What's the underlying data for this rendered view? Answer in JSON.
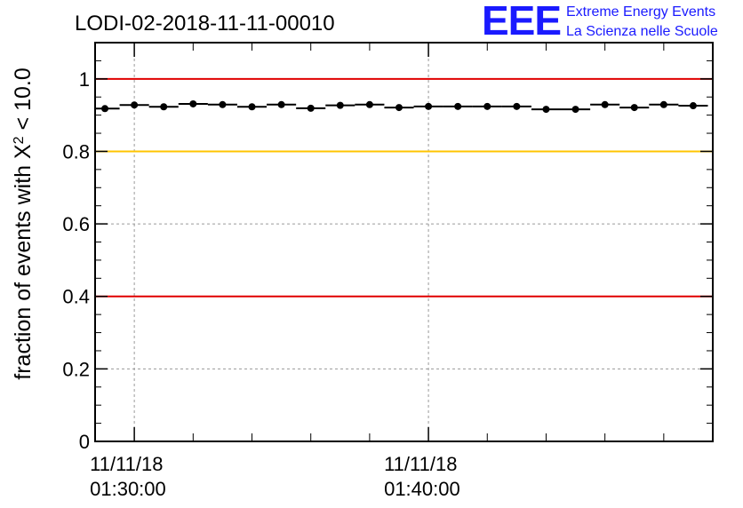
{
  "chart_data": {
    "type": "scatter",
    "title": "LODI-02-2018-11-11-00010",
    "ylabel": {
      "prefix": "fraction of events with ",
      "symbol": "X",
      "superscript": "2",
      "suffix": " < 10.0"
    },
    "ylim": [
      0,
      1.1
    ],
    "yticks": [
      {
        "value": 0,
        "label": "0"
      },
      {
        "value": 0.2,
        "label": "0.2"
      },
      {
        "value": 0.4,
        "label": "0.4"
      },
      {
        "value": 0.6,
        "label": "0.6"
      },
      {
        "value": 0.8,
        "label": "0.8"
      },
      {
        "value": 1,
        "label": "1"
      }
    ],
    "xlim": [
      "01:28:40",
      "01:49:40"
    ],
    "xticks": [
      {
        "time": "01:30:00",
        "line1": "11/11/18",
        "line2": "01:30:00"
      },
      {
        "time": "01:40:00",
        "line1": "11/11/18",
        "line2": "01:40:00"
      }
    ],
    "grid": true,
    "reference_lines": [
      {
        "value": 1.0,
        "color": "#e00000"
      },
      {
        "value": 0.8,
        "color": "#ffc400"
      },
      {
        "value": 0.4,
        "color": "#e00000"
      }
    ],
    "series": [
      {
        "color": "#000000",
        "x": [
          "01:29:00",
          "01:30:00",
          "01:31:00",
          "01:32:00",
          "01:33:00",
          "01:34:00",
          "01:35:00",
          "01:36:00",
          "01:37:00",
          "01:38:00",
          "01:39:00",
          "01:40:00",
          "01:41:00",
          "01:42:00",
          "01:43:00",
          "01:44:00",
          "01:45:00",
          "01:46:00",
          "01:47:00",
          "01:48:00",
          "01:49:00"
        ],
        "y": [
          0.918,
          0.928,
          0.923,
          0.931,
          0.929,
          0.923,
          0.929,
          0.919,
          0.927,
          0.929,
          0.921,
          0.924,
          0.924,
          0.924,
          0.924,
          0.916,
          0.916,
          0.929,
          0.921,
          0.929,
          0.926
        ]
      }
    ]
  },
  "logo": {
    "letters": "EEE",
    "line1": "Extreme Energy Events",
    "line2": "La Scienza nelle Scuole",
    "color": "#1a1aff"
  }
}
